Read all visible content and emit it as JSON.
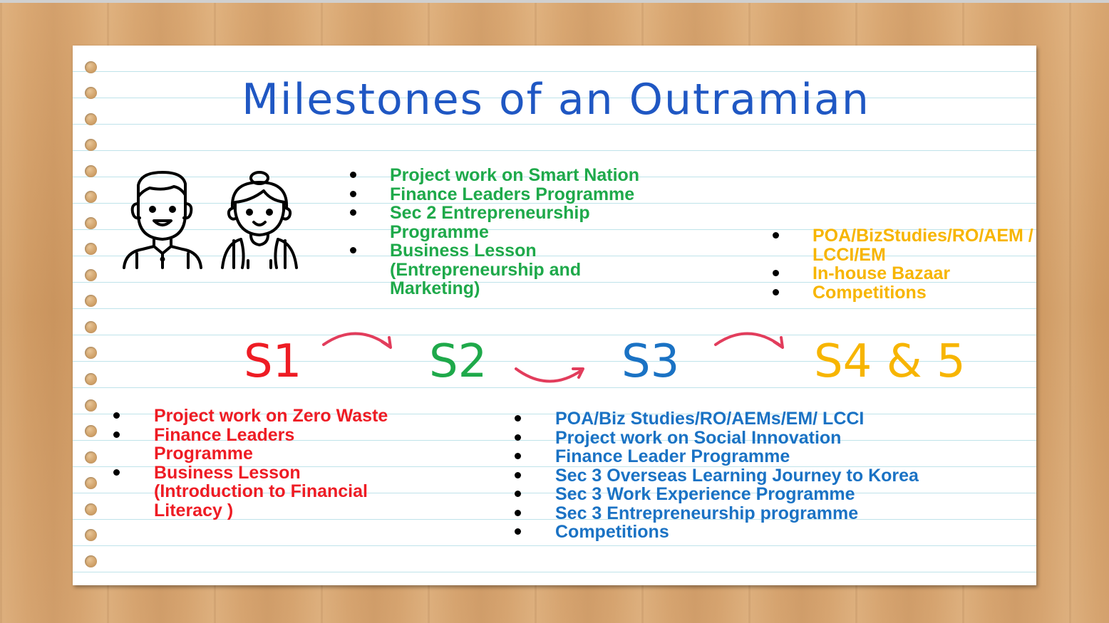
{
  "title": "Milestones of an Outramian",
  "stages": {
    "s1": "S1",
    "s2": "S2",
    "s3": "S3",
    "s45": "S4 & 5"
  },
  "colors": {
    "title": "#1f57c3",
    "s1": "#ee1c24",
    "s2": "#1ea94a",
    "s3": "#1a72c4",
    "s45": "#f7b500",
    "arrow": "#e23d5c"
  },
  "icons": [
    "boy-student-icon",
    "girl-student-icon"
  ],
  "s2_items": [
    "Project work on Smart Nation",
    "Finance Leaders Programme",
    "Sec 2 Entrepreneurship Programme",
    "Business Lesson (Entrepreneurship and Marketing)"
  ],
  "s45_items": [
    "POA/BizStudies/RO/AEM / LCCI/EM",
    "In-house Bazaar",
    "Competitions"
  ],
  "s1_items": [
    "Project work on Zero Waste",
    "Finance Leaders Programme",
    "Business Lesson (Introduction to Financial Literacy )"
  ],
  "s3_items": [
    "POA/Biz Studies/RO/AEMs/EM/ LCCI",
    "Project work on Social Innovation",
    "Finance Leader Programme",
    "Sec 3 Overseas Learning Journey to Korea",
    "Sec 3 Work Experience Programme",
    "Sec 3 Entrepreneurship programme",
    "Competitions"
  ]
}
